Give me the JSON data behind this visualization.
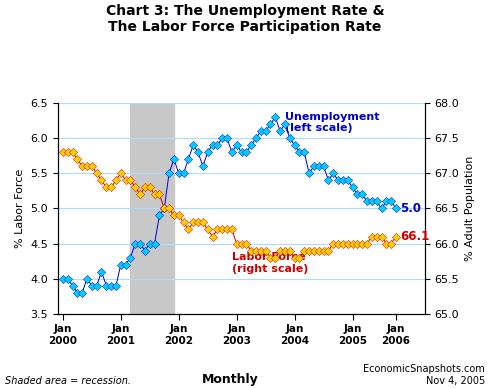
{
  "title": "Chart 3: The Unemployment Rate &\nThe Labor Force Participation Rate",
  "ylabel_left": "% Labor Force",
  "ylabel_right": "% Adult Population",
  "footnote_left": "Shaded area = recession.",
  "footnote_center": "Monthly",
  "footnote_right": "EconomicSnapshots.com\nNov 4, 2005",
  "ylim_left": [
    3.5,
    6.5
  ],
  "ylim_right": [
    65.0,
    68.0
  ],
  "yticks_left": [
    3.5,
    4.0,
    4.5,
    5.0,
    5.5,
    6.0,
    6.5
  ],
  "yticks_right": [
    65.0,
    65.5,
    66.0,
    66.5,
    67.0,
    67.5,
    68.0
  ],
  "recession_start": 14,
  "recession_end": 23,
  "unemp_label_val": "5.0",
  "lfp_label_val": "66.1",
  "unemp_marker_color": "#00CCFF",
  "unemp_line_color": "#0000CC",
  "lfp_marker_color": "#FFCC00",
  "lfp_line_color": "#CC0000",
  "grid_color": "#AADDFF",
  "recession_color": "#C8C8C8",
  "unemployment": [
    4.0,
    4.0,
    3.9,
    3.8,
    3.8,
    4.0,
    3.9,
    3.9,
    4.1,
    3.9,
    3.9,
    3.9,
    4.2,
    4.2,
    4.3,
    4.5,
    4.5,
    4.4,
    4.5,
    4.5,
    4.9,
    5.0,
    5.5,
    5.7,
    5.5,
    5.5,
    5.7,
    5.9,
    5.8,
    5.6,
    5.8,
    5.9,
    5.9,
    6.0,
    6.0,
    5.8,
    5.9,
    5.8,
    5.8,
    5.9,
    6.0,
    6.1,
    6.1,
    6.2,
    6.3,
    6.1,
    6.2,
    6.0,
    5.9,
    5.8,
    5.8,
    5.5,
    5.6,
    5.6,
    5.6,
    5.4,
    5.5,
    5.4,
    5.4,
    5.4,
    5.3,
    5.2,
    5.2,
    5.1,
    5.1,
    5.1,
    5.0,
    5.1,
    5.1,
    5.0
  ],
  "lfp": [
    67.3,
    67.3,
    67.3,
    67.2,
    67.1,
    67.1,
    67.1,
    67.0,
    66.9,
    66.8,
    66.8,
    66.9,
    67.0,
    66.9,
    66.9,
    66.8,
    66.7,
    66.8,
    66.8,
    66.7,
    66.7,
    66.5,
    66.5,
    66.4,
    66.4,
    66.3,
    66.2,
    66.3,
    66.3,
    66.3,
    66.2,
    66.1,
    66.2,
    66.2,
    66.2,
    66.2,
    66.0,
    66.0,
    66.0,
    65.9,
    65.9,
    65.9,
    65.9,
    65.8,
    65.8,
    65.9,
    65.9,
    65.9,
    65.8,
    65.8,
    65.9,
    65.9,
    65.9,
    65.9,
    65.9,
    65.9,
    66.0,
    66.0,
    66.0,
    66.0,
    66.0,
    66.0,
    66.0,
    66.0,
    66.1,
    66.1,
    66.1,
    66.0,
    66.0,
    66.1
  ],
  "n_months": 70,
  "xtick_positions": [
    0,
    12,
    24,
    36,
    48,
    60,
    69
  ],
  "xtick_labels": [
    "Jan\n2000",
    "Jan\n2001",
    "Jan\n2002",
    "Jan\n2003",
    "Jan\n2004",
    "Jan\n2005",
    "Jan\n2006"
  ]
}
